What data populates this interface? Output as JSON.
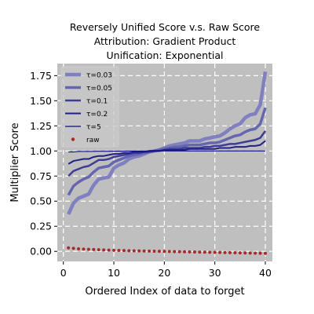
{
  "chart_data": {
    "type": "line",
    "title_lines": [
      "Reversely Unified Score v.s. Raw Score",
      "Attribution: Gradient Product",
      "Unification: Exponential"
    ],
    "xlabel": "Ordered Index of data to forget",
    "ylabel": "Multiplier Score",
    "xlim": [
      -1.2,
      41.4
    ],
    "ylim": [
      -0.1,
      1.87
    ],
    "xticks": [
      0,
      10,
      20,
      30,
      40
    ],
    "yticks": [
      0.0,
      0.25,
      0.5,
      0.75,
      1.0,
      1.25,
      1.5,
      1.75
    ],
    "ytick_labels": [
      "0.00",
      "0.25",
      "0.50",
      "0.75",
      "1.00",
      "1.25",
      "1.50",
      "1.75"
    ],
    "grid": true,
    "legend_position": "upper-left",
    "background": "#bfbfbf",
    "x": [
      1,
      2,
      3,
      4,
      5,
      6,
      7,
      8,
      9,
      10,
      11,
      12,
      13,
      14,
      15,
      16,
      17,
      18,
      19,
      20,
      21,
      22,
      23,
      24,
      25,
      26,
      27,
      28,
      29,
      30,
      31,
      32,
      33,
      34,
      35,
      36,
      37,
      38,
      39,
      40
    ],
    "series": [
      {
        "name": "τ=0.03",
        "color": "#8080c0",
        "width": 4.5,
        "style": "line",
        "values": [
          0.37,
          0.48,
          0.53,
          0.55,
          0.57,
          0.66,
          0.72,
          0.73,
          0.74,
          0.83,
          0.86,
          0.88,
          0.92,
          0.94,
          0.95,
          0.97,
          0.99,
          1.0,
          1.01,
          1.03,
          1.05,
          1.06,
          1.07,
          1.08,
          1.1,
          1.1,
          1.1,
          1.12,
          1.13,
          1.14,
          1.15,
          1.18,
          1.22,
          1.25,
          1.27,
          1.33,
          1.36,
          1.37,
          1.46,
          1.79
        ]
      },
      {
        "name": "τ=0.05",
        "color": "#6666b0",
        "width": 3.5,
        "style": "line",
        "values": [
          0.56,
          0.65,
          0.69,
          0.72,
          0.74,
          0.79,
          0.83,
          0.84,
          0.85,
          0.89,
          0.91,
          0.93,
          0.95,
          0.96,
          0.97,
          0.98,
          0.99,
          1.0,
          1.01,
          1.02,
          1.03,
          1.04,
          1.04,
          1.05,
          1.06,
          1.06,
          1.06,
          1.07,
          1.08,
          1.08,
          1.09,
          1.11,
          1.13,
          1.15,
          1.16,
          1.19,
          1.21,
          1.22,
          1.27,
          1.43
        ]
      },
      {
        "name": "τ=0.1",
        "color": "#3d3d96",
        "width": 2.5,
        "style": "line",
        "values": [
          0.75,
          0.8,
          0.82,
          0.84,
          0.85,
          0.88,
          0.91,
          0.91,
          0.92,
          0.94,
          0.95,
          0.96,
          0.97,
          0.98,
          0.98,
          0.99,
          0.99,
          1.0,
          1.0,
          1.01,
          1.02,
          1.02,
          1.02,
          1.03,
          1.03,
          1.03,
          1.03,
          1.04,
          1.04,
          1.05,
          1.05,
          1.06,
          1.07,
          1.07,
          1.08,
          1.09,
          1.1,
          1.11,
          1.13,
          1.2
        ]
      },
      {
        "name": "τ=0.2",
        "color": "#1f1f86",
        "width": 2,
        "style": "line",
        "values": [
          0.87,
          0.9,
          0.91,
          0.92,
          0.92,
          0.94,
          0.95,
          0.95,
          0.96,
          0.97,
          0.97,
          0.98,
          0.98,
          0.99,
          0.99,
          0.99,
          1.0,
          1.0,
          1.0,
          1.01,
          1.01,
          1.01,
          1.01,
          1.01,
          1.02,
          1.02,
          1.02,
          1.02,
          1.02,
          1.02,
          1.03,
          1.03,
          1.03,
          1.04,
          1.04,
          1.04,
          1.05,
          1.05,
          1.06,
          1.1
        ]
      },
      {
        "name": "τ=5",
        "color": "#0a0a78",
        "width": 1.2,
        "style": "line",
        "values": [
          0.99,
          0.99,
          0.995,
          0.995,
          0.995,
          0.996,
          0.997,
          0.997,
          0.997,
          0.998,
          0.998,
          0.998,
          0.999,
          0.999,
          0.999,
          0.999,
          1.0,
          1.0,
          1.0,
          1.0,
          1.0,
          1.0,
          1.0,
          1.0,
          1.0,
          1.0,
          1.0,
          1.0,
          1.0,
          1.0,
          1.0,
          1.0,
          1.0,
          1.0,
          1.0,
          1.0,
          1.0,
          1.0,
          1.0,
          1.0
        ]
      },
      {
        "name": "raw",
        "color": "#a52a2a",
        "style": "scatter",
        "values": [
          0.035,
          0.03,
          0.025,
          0.022,
          0.02,
          0.018,
          0.016,
          0.014,
          0.012,
          0.01,
          0.009,
          0.008,
          0.007,
          0.006,
          0.005,
          0.004,
          0.003,
          0.002,
          0.001,
          0.0,
          -0.001,
          -0.002,
          -0.003,
          -0.004,
          -0.005,
          -0.006,
          -0.007,
          -0.008,
          -0.009,
          -0.01,
          -0.011,
          -0.012,
          -0.013,
          -0.014,
          -0.015,
          -0.016,
          -0.017,
          -0.018,
          -0.019,
          -0.02
        ]
      }
    ]
  }
}
